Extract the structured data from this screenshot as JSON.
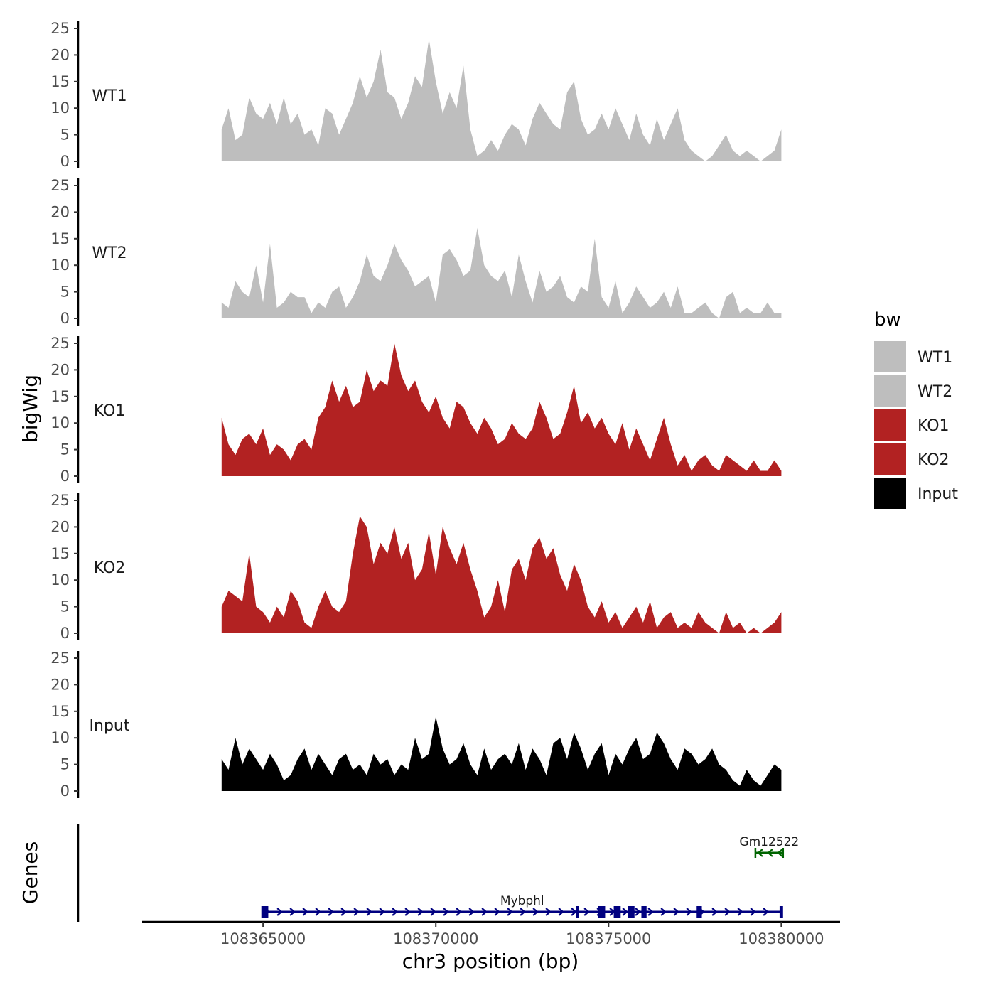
{
  "chart_data": {
    "type": "area",
    "title": "",
    "xlabel": "chr3 position (bp)",
    "ylabel": "bigWig",
    "genes_label": "Genes",
    "xlim": [
      108361500,
      108381700
    ],
    "ylim": [
      0,
      25
    ],
    "x_ticks": [
      108365000,
      108370000,
      108375000,
      108380000
    ],
    "x_tick_labels": [
      "108365000",
      "108370000",
      "108375000",
      "108380000"
    ],
    "y_ticks": [
      0,
      5,
      10,
      15,
      20,
      25
    ],
    "y_tick_labels": [
      "0",
      "5",
      "10",
      "15",
      "20",
      "25"
    ],
    "legend": {
      "title": "bw",
      "position": "right",
      "entries": [
        {
          "name": "WT1",
          "color": "#bebebe"
        },
        {
          "name": "WT2",
          "color": "#bebebe"
        },
        {
          "name": "KO1",
          "color": "#b22222"
        },
        {
          "name": "KO2",
          "color": "#b22222"
        },
        {
          "name": "Input",
          "color": "#000000"
        }
      ]
    },
    "series": [
      {
        "name": "WT1",
        "color": "#bebebe",
        "x": [
          108363800,
          108364000,
          108364200,
          108364400,
          108364600,
          108364800,
          108365000,
          108365200,
          108365400,
          108365600,
          108365800,
          108366000,
          108366200,
          108366400,
          108366600,
          108366800,
          108367000,
          108367200,
          108367400,
          108367600,
          108367800,
          108368000,
          108368200,
          108368400,
          108368600,
          108368800,
          108369000,
          108369200,
          108369400,
          108369600,
          108369800,
          108370000,
          108370200,
          108370400,
          108370600,
          108370800,
          108371000,
          108371200,
          108371400,
          108371600,
          108371800,
          108372000,
          108372200,
          108372400,
          108372600,
          108372800,
          108373000,
          108373200,
          108373400,
          108373600,
          108373800,
          108374000,
          108374200,
          108374400,
          108374600,
          108374800,
          108375000,
          108375200,
          108375400,
          108375600,
          108375800,
          108376000,
          108376200,
          108376400,
          108376600,
          108376800,
          108377000,
          108377200,
          108377400,
          108377600,
          108377800,
          108378000,
          108378200,
          108378400,
          108378600,
          108378800,
          108379000,
          108379200,
          108379400,
          108379600,
          108379800,
          108380000
        ],
        "values": [
          6,
          10,
          4,
          5,
          12,
          9,
          8,
          11,
          7,
          12,
          7,
          9,
          5,
          6,
          3,
          10,
          9,
          5,
          8,
          11,
          16,
          12,
          15,
          21,
          13,
          12,
          8,
          11,
          16,
          14,
          23,
          15,
          9,
          13,
          10,
          18,
          6,
          1,
          2,
          4,
          2,
          5,
          7,
          6,
          3,
          8,
          11,
          9,
          7,
          6,
          13,
          15,
          8,
          5,
          6,
          9,
          6,
          10,
          7,
          4,
          9,
          5,
          3,
          8,
          4,
          7,
          10,
          4,
          2,
          1,
          0,
          1,
          3,
          5,
          2,
          1,
          2,
          1,
          0,
          1,
          2,
          6
        ]
      },
      {
        "name": "WT2",
        "color": "#bebebe",
        "x": [
          108363800,
          108364000,
          108364200,
          108364400,
          108364600,
          108364800,
          108365000,
          108365200,
          108365400,
          108365600,
          108365800,
          108366000,
          108366200,
          108366400,
          108366600,
          108366800,
          108367000,
          108367200,
          108367400,
          108367600,
          108367800,
          108368000,
          108368200,
          108368400,
          108368600,
          108368800,
          108369000,
          108369200,
          108369400,
          108369600,
          108369800,
          108370000,
          108370200,
          108370400,
          108370600,
          108370800,
          108371000,
          108371200,
          108371400,
          108371600,
          108371800,
          108372000,
          108372200,
          108372400,
          108372600,
          108372800,
          108373000,
          108373200,
          108373400,
          108373600,
          108373800,
          108374000,
          108374200,
          108374400,
          108374600,
          108374800,
          108375000,
          108375200,
          108375400,
          108375600,
          108375800,
          108376000,
          108376200,
          108376400,
          108376600,
          108376800,
          108377000,
          108377200,
          108377400,
          108377600,
          108377800,
          108378000,
          108378200,
          108378400,
          108378600,
          108378800,
          108379000,
          108379200,
          108379400,
          108379600,
          108379800,
          108380000
        ],
        "values": [
          3,
          2,
          7,
          5,
          4,
          10,
          3,
          14,
          2,
          3,
          5,
          4,
          4,
          1,
          3,
          2,
          5,
          6,
          2,
          4,
          7,
          12,
          8,
          7,
          10,
          14,
          11,
          9,
          6,
          7,
          8,
          3,
          12,
          13,
          11,
          8,
          9,
          17,
          10,
          8,
          7,
          9,
          4,
          12,
          7,
          3,
          9,
          5,
          6,
          8,
          4,
          3,
          6,
          5,
          15,
          4,
          2,
          7,
          1,
          3,
          6,
          4,
          2,
          3,
          5,
          2,
          6,
          1,
          1,
          2,
          3,
          1,
          0,
          4,
          5,
          1,
          2,
          1,
          1,
          3,
          1,
          1
        ]
      },
      {
        "name": "KO1",
        "color": "#b22222",
        "x": [
          108363800,
          108364000,
          108364200,
          108364400,
          108364600,
          108364800,
          108365000,
          108365200,
          108365400,
          108365600,
          108365800,
          108366000,
          108366200,
          108366400,
          108366600,
          108366800,
          108367000,
          108367200,
          108367400,
          108367600,
          108367800,
          108368000,
          108368200,
          108368400,
          108368600,
          108368800,
          108369000,
          108369200,
          108369400,
          108369600,
          108369800,
          108370000,
          108370200,
          108370400,
          108370600,
          108370800,
          108371000,
          108371200,
          108371400,
          108371600,
          108371800,
          108372000,
          108372200,
          108372400,
          108372600,
          108372800,
          108373000,
          108373200,
          108373400,
          108373600,
          108373800,
          108374000,
          108374200,
          108374400,
          108374600,
          108374800,
          108375000,
          108375200,
          108375400,
          108375600,
          108375800,
          108376000,
          108376200,
          108376400,
          108376600,
          108376800,
          108377000,
          108377200,
          108377400,
          108377600,
          108377800,
          108378000,
          108378200,
          108378400,
          108378600,
          108378800,
          108379000,
          108379200,
          108379400,
          108379600,
          108379800,
          108380000
        ],
        "values": [
          11,
          6,
          4,
          7,
          8,
          6,
          9,
          4,
          6,
          5,
          3,
          6,
          7,
          5,
          11,
          13,
          18,
          14,
          17,
          13,
          14,
          20,
          16,
          18,
          17,
          25,
          19,
          16,
          18,
          14,
          12,
          15,
          11,
          9,
          14,
          13,
          10,
          8,
          11,
          9,
          6,
          7,
          10,
          8,
          7,
          9,
          14,
          11,
          7,
          8,
          12,
          17,
          10,
          12,
          9,
          11,
          8,
          6,
          10,
          5,
          9,
          6,
          3,
          7,
          11,
          6,
          2,
          4,
          1,
          3,
          4,
          2,
          1,
          4,
          3,
          2,
          1,
          3,
          1,
          1,
          3,
          1
        ]
      },
      {
        "name": "KO2",
        "color": "#b22222",
        "x": [
          108363800,
          108364000,
          108364200,
          108364400,
          108364600,
          108364800,
          108365000,
          108365200,
          108365400,
          108365600,
          108365800,
          108366000,
          108366200,
          108366400,
          108366600,
          108366800,
          108367000,
          108367200,
          108367400,
          108367600,
          108367800,
          108368000,
          108368200,
          108368400,
          108368600,
          108368800,
          108369000,
          108369200,
          108369400,
          108369600,
          108369800,
          108370000,
          108370200,
          108370400,
          108370600,
          108370800,
          108371000,
          108371200,
          108371400,
          108371600,
          108371800,
          108372000,
          108372200,
          108372400,
          108372600,
          108372800,
          108373000,
          108373200,
          108373400,
          108373600,
          108373800,
          108374000,
          108374200,
          108374400,
          108374600,
          108374800,
          108375000,
          108375200,
          108375400,
          108375600,
          108375800,
          108376000,
          108376200,
          108376400,
          108376600,
          108376800,
          108377000,
          108377200,
          108377400,
          108377600,
          108377800,
          108378000,
          108378200,
          108378400,
          108378600,
          108378800,
          108379000,
          108379200,
          108379400,
          108379600,
          108379800,
          108380000
        ],
        "values": [
          5,
          8,
          7,
          6,
          15,
          5,
          4,
          2,
          5,
          3,
          8,
          6,
          2,
          1,
          5,
          8,
          5,
          4,
          6,
          15,
          22,
          20,
          13,
          17,
          15,
          20,
          14,
          17,
          10,
          12,
          19,
          11,
          20,
          16,
          13,
          17,
          12,
          8,
          3,
          5,
          10,
          4,
          12,
          14,
          10,
          16,
          18,
          14,
          16,
          11,
          8,
          13,
          10,
          5,
          3,
          6,
          2,
          4,
          1,
          3,
          5,
          2,
          6,
          1,
          3,
          4,
          1,
          2,
          1,
          4,
          2,
          1,
          0,
          4,
          1,
          2,
          0,
          1,
          0,
          1,
          2,
          4
        ]
      },
      {
        "name": "Input",
        "color": "#000000",
        "x": [
          108363800,
          108364000,
          108364200,
          108364400,
          108364600,
          108364800,
          108365000,
          108365200,
          108365400,
          108365600,
          108365800,
          108366000,
          108366200,
          108366400,
          108366600,
          108366800,
          108367000,
          108367200,
          108367400,
          108367600,
          108367800,
          108368000,
          108368200,
          108368400,
          108368600,
          108368800,
          108369000,
          108369200,
          108369400,
          108369600,
          108369800,
          108370000,
          108370200,
          108370400,
          108370600,
          108370800,
          108371000,
          108371200,
          108371400,
          108371600,
          108371800,
          108372000,
          108372200,
          108372400,
          108372600,
          108372800,
          108373000,
          108373200,
          108373400,
          108373600,
          108373800,
          108374000,
          108374200,
          108374400,
          108374600,
          108374800,
          108375000,
          108375200,
          108375400,
          108375600,
          108375800,
          108376000,
          108376200,
          108376400,
          108376600,
          108376800,
          108377000,
          108377200,
          108377400,
          108377600,
          108377800,
          108378000,
          108378200,
          108378400,
          108378600,
          108378800,
          108379000,
          108379200,
          108379400,
          108379600,
          108379800,
          108380000
        ],
        "values": [
          6,
          4,
          10,
          5,
          8,
          6,
          4,
          7,
          5,
          2,
          3,
          6,
          8,
          4,
          7,
          5,
          3,
          6,
          7,
          4,
          5,
          3,
          7,
          5,
          6,
          3,
          5,
          4,
          10,
          6,
          7,
          14,
          8,
          5,
          6,
          9,
          5,
          3,
          8,
          4,
          6,
          7,
          5,
          9,
          4,
          8,
          6,
          3,
          9,
          10,
          6,
          11,
          8,
          4,
          7,
          9,
          3,
          7,
          5,
          8,
          10,
          6,
          7,
          11,
          9,
          6,
          4,
          8,
          7,
          5,
          6,
          8,
          5,
          4,
          2,
          1,
          4,
          2,
          1,
          3,
          5,
          4
        ]
      }
    ],
    "genes": [
      {
        "name": "Mybphl",
        "start": 108365000,
        "end": 108380000,
        "strand": "+",
        "color": "#000080",
        "exons": [
          [
            108364950,
            108365150
          ],
          [
            108374050,
            108374150
          ],
          [
            108374700,
            108374900
          ],
          [
            108375150,
            108375350
          ],
          [
            108375550,
            108375750
          ],
          [
            108375950,
            108376100
          ],
          [
            108377550,
            108377700
          ],
          [
            108379950,
            108380050
          ]
        ]
      },
      {
        "name": "Gm12522",
        "start": 108379250,
        "end": 108380050,
        "strand": "-",
        "color": "#006400",
        "exons": []
      }
    ]
  }
}
